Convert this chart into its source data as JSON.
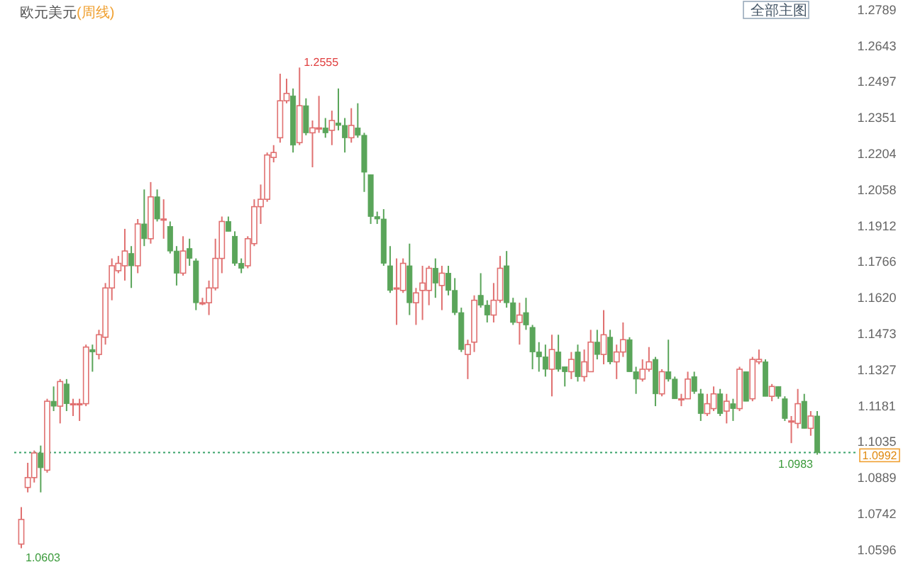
{
  "chart_data": {
    "type": "candlestick",
    "title": "欧元美元",
    "subtitle": "(周线)",
    "categories": [
      null,
      null,
      null,
      null,
      null,
      null,
      null,
      null,
      null,
      null,
      null,
      null,
      null,
      null,
      null,
      null,
      null,
      null,
      null,
      null,
      null,
      null,
      null,
      null,
      null,
      null,
      null,
      null,
      null,
      null,
      null,
      null,
      null,
      null,
      null,
      null,
      null,
      null,
      null,
      null,
      null,
      null,
      null,
      null,
      null,
      null,
      null,
      null,
      null,
      null,
      null,
      null,
      null,
      null,
      null,
      null,
      null,
      null,
      null,
      null,
      null,
      null,
      null,
      null,
      null,
      null,
      null,
      null,
      null,
      null,
      null,
      null,
      null,
      null,
      null,
      null,
      null,
      null,
      null,
      null,
      null,
      null,
      null,
      null,
      null,
      null,
      null,
      null,
      null,
      null,
      null,
      null,
      null,
      null,
      null,
      null,
      null,
      null,
      null,
      null,
      null,
      null,
      null,
      null,
      null,
      null,
      null,
      null,
      null,
      null,
      null,
      null,
      null,
      null,
      null,
      null,
      null,
      null,
      null,
      null,
      null,
      null,
      null,
      null
    ],
    "ohlc": [
      [
        1.062,
        1.077,
        1.0603,
        1.072
      ],
      [
        1.085,
        1.095,
        1.083,
        1.089
      ],
      [
        1.089,
        1.1,
        1.087,
        1.099
      ],
      [
        1.099,
        1.102,
        1.083,
        1.093
      ],
      [
        1.092,
        1.121,
        1.091,
        1.12
      ],
      [
        1.12,
        1.126,
        1.116,
        1.118
      ],
      [
        1.118,
        1.129,
        1.111,
        1.128
      ],
      [
        1.127,
        1.129,
        1.116,
        1.119
      ],
      [
        1.119,
        1.121,
        1.114,
        1.119
      ],
      [
        1.119,
        1.121,
        1.112,
        1.119
      ],
      [
        1.119,
        1.143,
        1.118,
        1.142
      ],
      [
        1.141,
        1.143,
        1.132,
        1.14
      ],
      [
        1.139,
        1.149,
        1.137,
        1.147
      ],
      [
        1.146,
        1.168,
        1.143,
        1.166
      ],
      [
        1.166,
        1.178,
        1.161,
        1.175
      ],
      [
        1.173,
        1.179,
        1.172,
        1.176
      ],
      [
        1.175,
        1.19,
        1.169,
        1.181
      ],
      [
        1.18,
        1.183,
        1.166,
        1.175
      ],
      [
        1.175,
        1.194,
        1.172,
        1.192
      ],
      [
        1.192,
        1.206,
        1.183,
        1.186
      ],
      [
        1.186,
        1.209,
        1.184,
        1.203
      ],
      [
        1.203,
        1.206,
        1.193,
        1.194
      ],
      [
        1.194,
        1.202,
        1.186,
        1.194
      ],
      [
        1.191,
        1.193,
        1.18,
        1.181
      ],
      [
        1.181,
        1.183,
        1.167,
        1.172
      ],
      [
        1.172,
        1.187,
        1.171,
        1.181
      ],
      [
        1.182,
        1.186,
        1.175,
        1.178
      ],
      [
        1.177,
        1.178,
        1.157,
        1.16
      ],
      [
        1.16,
        1.162,
        1.159,
        1.16
      ],
      [
        1.16,
        1.169,
        1.155,
        1.166
      ],
      [
        1.166,
        1.186,
        1.165,
        1.178
      ],
      [
        1.178,
        1.195,
        1.172,
        1.193
      ],
      [
        1.193,
        1.195,
        1.189,
        1.189
      ],
      [
        1.187,
        1.189,
        1.175,
        1.176
      ],
      [
        1.176,
        1.178,
        1.172,
        1.174
      ],
      [
        1.175,
        1.187,
        1.174,
        1.186
      ],
      [
        1.184,
        1.202,
        1.183,
        1.199
      ],
      [
        1.199,
        1.208,
        1.192,
        1.202
      ],
      [
        1.202,
        1.221,
        1.201,
        1.22
      ],
      [
        1.219,
        1.224,
        1.217,
        1.221
      ],
      [
        1.227,
        1.253,
        1.225,
        1.242
      ],
      [
        1.242,
        1.251,
        1.241,
        1.245
      ],
      [
        1.244,
        1.247,
        1.221,
        1.224
      ],
      [
        1.225,
        1.2555,
        1.224,
        1.24
      ],
      [
        1.24,
        1.243,
        1.228,
        1.229
      ],
      [
        1.229,
        1.234,
        1.215,
        1.231
      ],
      [
        1.231,
        1.244,
        1.229,
        1.231
      ],
      [
        1.231,
        1.235,
        1.227,
        1.229
      ],
      [
        1.23,
        1.238,
        1.224,
        1.234
      ],
      [
        1.233,
        1.247,
        1.23,
        1.232
      ],
      [
        1.232,
        1.235,
        1.221,
        1.227
      ],
      [
        1.227,
        1.239,
        1.225,
        1.232
      ],
      [
        1.231,
        1.241,
        1.227,
        1.228
      ],
      [
        1.228,
        1.229,
        1.205,
        1.213
      ],
      [
        1.212,
        1.212,
        1.192,
        1.195
      ],
      [
        1.195,
        1.197,
        1.192,
        1.194
      ],
      [
        1.194,
        1.198,
        1.175,
        1.176
      ],
      [
        1.175,
        1.183,
        1.164,
        1.165
      ],
      [
        1.166,
        1.178,
        1.151,
        1.166
      ],
      [
        1.165,
        1.178,
        1.164,
        1.176
      ],
      [
        1.175,
        1.184,
        1.155,
        1.16
      ],
      [
        1.16,
        1.166,
        1.151,
        1.164
      ],
      [
        1.165,
        1.175,
        1.153,
        1.168
      ],
      [
        1.165,
        1.175,
        1.159,
        1.174
      ],
      [
        1.174,
        1.178,
        1.162,
        1.168
      ],
      [
        1.167,
        1.175,
        1.157,
        1.172
      ],
      [
        1.172,
        1.175,
        1.163,
        1.165
      ],
      [
        1.165,
        1.17,
        1.155,
        1.156
      ],
      [
        1.156,
        1.158,
        1.14,
        1.141
      ],
      [
        1.139,
        1.145,
        1.129,
        1.143
      ],
      [
        1.144,
        1.163,
        1.14,
        1.161
      ],
      [
        1.163,
        1.172,
        1.158,
        1.159
      ],
      [
        1.159,
        1.161,
        1.152,
        1.155
      ],
      [
        1.155,
        1.168,
        1.152,
        1.161
      ],
      [
        1.161,
        1.179,
        1.16,
        1.174
      ],
      [
        1.175,
        1.181,
        1.158,
        1.16
      ],
      [
        1.16,
        1.162,
        1.151,
        1.152
      ],
      [
        1.152,
        1.16,
        1.143,
        1.155
      ],
      [
        1.156,
        1.162,
        1.149,
        1.151
      ],
      [
        1.15,
        1.151,
        1.133,
        1.14
      ],
      [
        1.14,
        1.144,
        1.132,
        1.138
      ],
      [
        1.138,
        1.143,
        1.13,
        1.133
      ],
      [
        1.133,
        1.147,
        1.122,
        1.141
      ],
      [
        1.14,
        1.147,
        1.132,
        1.133
      ],
      [
        1.134,
        1.134,
        1.126,
        1.132
      ],
      [
        1.132,
        1.14,
        1.129,
        1.137
      ],
      [
        1.14,
        1.143,
        1.128,
        1.13
      ],
      [
        1.13,
        1.141,
        1.128,
        1.136
      ],
      [
        1.132,
        1.149,
        1.132,
        1.144
      ],
      [
        1.144,
        1.149,
        1.137,
        1.139
      ],
      [
        1.139,
        1.157,
        1.135,
        1.147
      ],
      [
        1.146,
        1.149,
        1.135,
        1.136
      ],
      [
        1.136,
        1.143,
        1.129,
        1.14
      ],
      [
        1.14,
        1.152,
        1.138,
        1.145
      ],
      [
        1.145,
        1.146,
        1.132,
        1.132
      ],
      [
        1.132,
        1.134,
        1.123,
        1.129
      ],
      [
        1.129,
        1.137,
        1.128,
        1.133
      ],
      [
        1.133,
        1.142,
        1.132,
        1.136
      ],
      [
        1.137,
        1.138,
        1.118,
        1.123
      ],
      [
        1.123,
        1.133,
        1.122,
        1.132
      ],
      [
        1.132,
        1.145,
        1.128,
        1.129
      ],
      [
        1.129,
        1.13,
        1.121,
        1.121
      ],
      [
        1.121,
        1.123,
        1.118,
        1.121
      ],
      [
        1.121,
        1.132,
        1.121,
        1.129
      ],
      [
        1.13,
        1.132,
        1.123,
        1.124
      ],
      [
        1.123,
        1.125,
        1.112,
        1.115
      ],
      [
        1.115,
        1.123,
        1.114,
        1.119
      ],
      [
        1.117,
        1.126,
        1.116,
        1.123
      ],
      [
        1.123,
        1.125,
        1.114,
        1.115
      ],
      [
        1.116,
        1.123,
        1.111,
        1.12
      ],
      [
        1.119,
        1.121,
        1.112,
        1.117
      ],
      [
        1.117,
        1.134,
        1.116,
        1.133
      ],
      [
        1.132,
        1.132,
        1.12,
        1.12
      ],
      [
        1.121,
        1.138,
        1.12,
        1.137
      ],
      [
        1.136,
        1.141,
        1.135,
        1.137
      ],
      [
        1.136,
        1.137,
        1.122,
        1.122
      ],
      [
        1.122,
        1.127,
        1.12,
        1.126
      ],
      [
        1.126,
        1.126,
        1.121,
        1.122
      ],
      [
        1.121,
        1.122,
        1.112,
        1.113
      ],
      [
        1.112,
        1.114,
        1.103,
        1.112
      ],
      [
        1.111,
        1.125,
        1.109,
        1.119
      ],
      [
        1.12,
        1.123,
        1.109,
        1.109
      ],
      [
        1.109,
        1.116,
        1.106,
        1.114
      ],
      [
        1.114,
        1.116,
        1.0983,
        1.0992
      ]
    ],
    "ylim": [
      1.0596,
      1.2789
    ],
    "yticks": [
      1.2789,
      1.2643,
      1.2497,
      1.2351,
      1.2204,
      1.2058,
      1.1912,
      1.1766,
      {
        "value": 1.162,
        "label": "1.1620"
      },
      1.1473,
      1.1327,
      1.1181,
      1.1035,
      1.0889,
      1.0742,
      1.0596
    ],
    "ref_lines": [
      {
        "axis": "y",
        "value": 1.0992,
        "label": "1.0992",
        "color": "#3aa36b",
        "line_style": "dotted"
      }
    ],
    "annotations": [
      "全部主图",
      "1.2555",
      "1.0603",
      "1.0983"
    ],
    "tick_labels": "y"
  }
}
